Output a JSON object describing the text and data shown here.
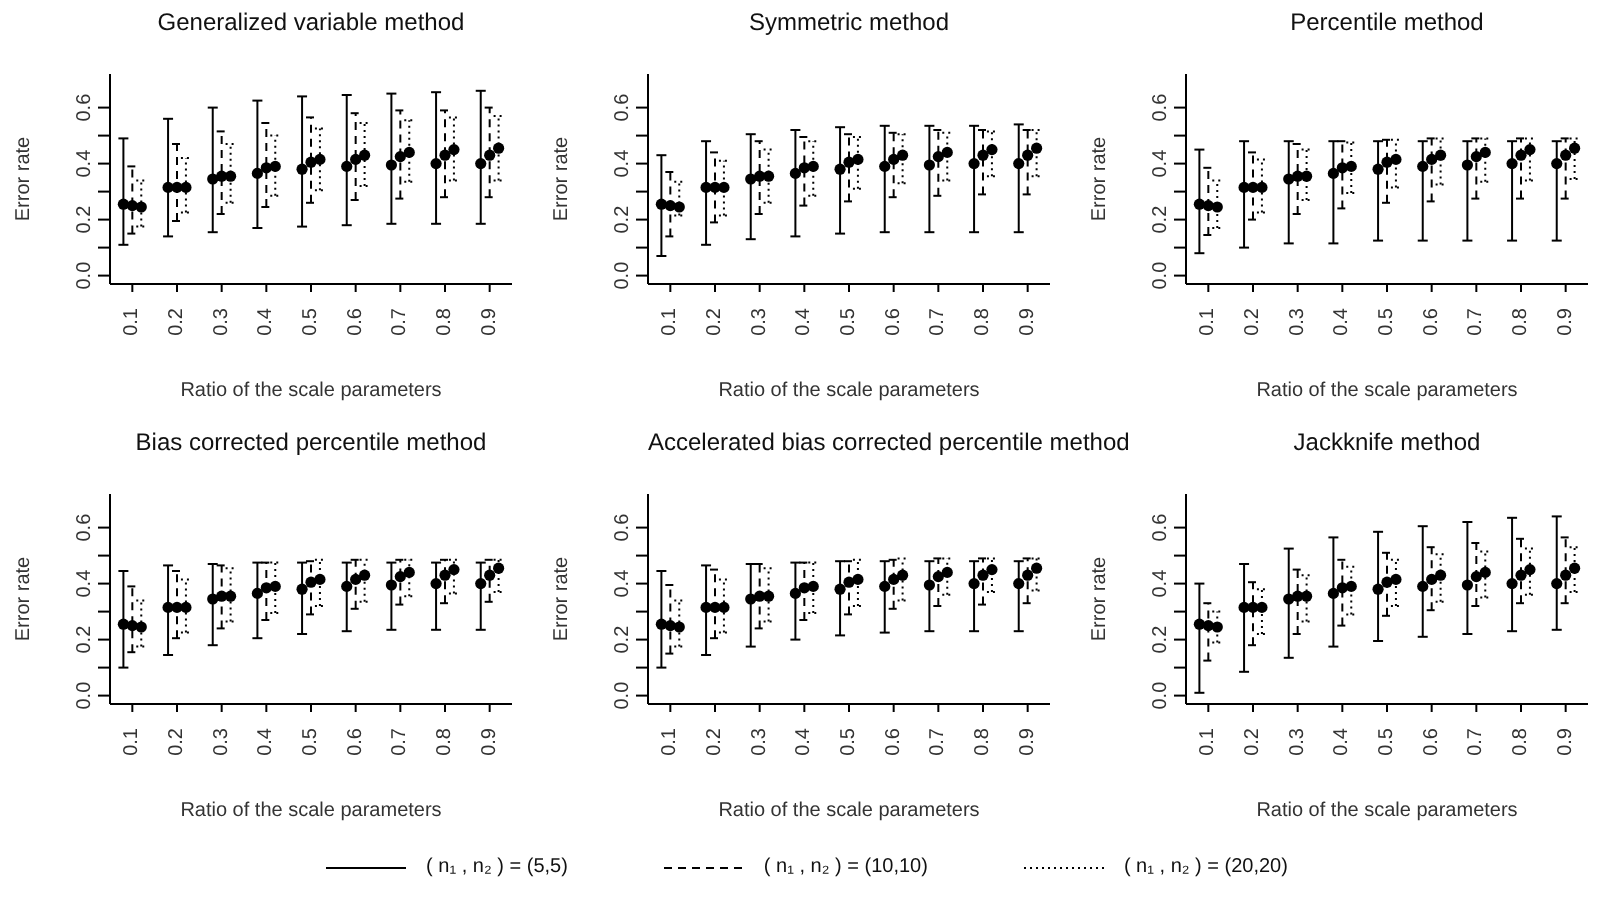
{
  "chart_data": [
    {
      "type": "scatter",
      "title": "Generalized variable method",
      "xlabel": "Ratio of the scale parameters",
      "ylabel": "Error rate",
      "xlim": [
        0.05,
        0.95
      ],
      "xticks": [
        0.1,
        0.2,
        0.3,
        0.4,
        0.5,
        0.6,
        0.7,
        0.8,
        0.9
      ],
      "ylim": [
        -0.03,
        0.72
      ],
      "yticks": [
        {
          "value": 0,
          "label": "0.0"
        },
        {
          "value": 0.1,
          "label": null
        },
        {
          "value": 0.2,
          "label": "0.2"
        },
        {
          "value": 0.3,
          "label": null
        },
        {
          "value": 0.4,
          "label": "0.4"
        },
        {
          "value": 0.5,
          "label": null
        },
        {
          "value": 0.6,
          "label": "0.6"
        }
      ],
      "grid": false,
      "marker": "circle",
      "legend": false,
      "series": [
        {
          "color": "#000000",
          "line_style": "solid",
          "x": [
            0.08,
            0.18,
            0.28,
            0.38,
            0.48,
            0.58,
            0.68,
            0.78,
            0.88
          ],
          "values": [
            0.255,
            0.315,
            0.345,
            0.365,
            0.38,
            0.39,
            0.395,
            0.4,
            0.4
          ],
          "errors": [
            [
              0.11,
              0.49
            ],
            [
              0.14,
              0.56
            ],
            [
              0.155,
              0.6
            ],
            [
              0.17,
              0.625
            ],
            [
              0.175,
              0.64
            ],
            [
              0.18,
              0.645
            ],
            [
              0.185,
              0.65
            ],
            [
              0.185,
              0.655
            ],
            [
              0.185,
              0.66
            ]
          ]
        },
        {
          "color": "#000000",
          "line_style": "dashed",
          "x": [
            0.1,
            0.2,
            0.3,
            0.4,
            0.5,
            0.6,
            0.7,
            0.8,
            0.9
          ],
          "values": [
            0.25,
            0.315,
            0.355,
            0.385,
            0.405,
            0.415,
            0.425,
            0.43,
            0.43
          ],
          "errors": [
            [
              0.15,
              0.39
            ],
            [
              0.195,
              0.47
            ],
            [
              0.22,
              0.515
            ],
            [
              0.245,
              0.545
            ],
            [
              0.26,
              0.565
            ],
            [
              0.27,
              0.58
            ],
            [
              0.275,
              0.59
            ],
            [
              0.28,
              0.59
            ],
            [
              0.28,
              0.6
            ]
          ]
        },
        {
          "color": "#000000",
          "line_style": "dotted",
          "x": [
            0.12,
            0.22,
            0.32,
            0.42,
            0.52,
            0.62,
            0.72,
            0.82,
            0.92
          ],
          "values": [
            0.245,
            0.315,
            0.355,
            0.39,
            0.415,
            0.43,
            0.44,
            0.45,
            0.455
          ],
          "errors": [
            [
              0.175,
              0.34
            ],
            [
              0.225,
              0.42
            ],
            [
              0.26,
              0.47
            ],
            [
              0.285,
              0.5
            ],
            [
              0.305,
              0.525
            ],
            [
              0.32,
              0.545
            ],
            [
              0.335,
              0.555
            ],
            [
              0.34,
              0.565
            ],
            [
              0.34,
              0.57
            ]
          ]
        }
      ]
    },
    {
      "type": "scatter",
      "title": "Symmetric method",
      "xlabel": "Ratio of the scale parameters",
      "ylabel": "Error rate",
      "xlim": [
        0.05,
        0.95
      ],
      "xticks": [
        0.1,
        0.2,
        0.3,
        0.4,
        0.5,
        0.6,
        0.7,
        0.8,
        0.9
      ],
      "ylim": [
        -0.03,
        0.72
      ],
      "yticks": [
        {
          "value": 0,
          "label": "0.0"
        },
        {
          "value": 0.1,
          "label": null
        },
        {
          "value": 0.2,
          "label": "0.2"
        },
        {
          "value": 0.3,
          "label": null
        },
        {
          "value": 0.4,
          "label": "0.4"
        },
        {
          "value": 0.5,
          "label": null
        },
        {
          "value": 0.6,
          "label": "0.6"
        }
      ],
      "grid": false,
      "marker": "circle",
      "legend": false,
      "series": [
        {
          "color": "#000000",
          "line_style": "solid",
          "x": [
            0.08,
            0.18,
            0.28,
            0.38,
            0.48,
            0.58,
            0.68,
            0.78,
            0.88
          ],
          "values": [
            0.255,
            0.315,
            0.345,
            0.365,
            0.38,
            0.39,
            0.395,
            0.4,
            0.4
          ],
          "errors": [
            [
              0.07,
              0.43
            ],
            [
              0.11,
              0.48
            ],
            [
              0.13,
              0.505
            ],
            [
              0.14,
              0.52
            ],
            [
              0.15,
              0.53
            ],
            [
              0.155,
              0.535
            ],
            [
              0.155,
              0.535
            ],
            [
              0.155,
              0.535
            ],
            [
              0.155,
              0.54
            ]
          ]
        },
        {
          "color": "#000000",
          "line_style": "dashed",
          "x": [
            0.1,
            0.2,
            0.3,
            0.4,
            0.5,
            0.6,
            0.7,
            0.8,
            0.9
          ],
          "values": [
            0.25,
            0.315,
            0.355,
            0.385,
            0.405,
            0.415,
            0.425,
            0.43,
            0.43
          ],
          "errors": [
            [
              0.14,
              0.37
            ],
            [
              0.19,
              0.44
            ],
            [
              0.22,
              0.48
            ],
            [
              0.25,
              0.495
            ],
            [
              0.265,
              0.505
            ],
            [
              0.28,
              0.51
            ],
            [
              0.285,
              0.52
            ],
            [
              0.29,
              0.52
            ],
            [
              0.29,
              0.52
            ]
          ]
        },
        {
          "color": "#000000",
          "line_style": "dotted",
          "x": [
            0.12,
            0.22,
            0.32,
            0.42,
            0.52,
            0.62,
            0.72,
            0.82,
            0.92
          ],
          "values": [
            0.245,
            0.315,
            0.355,
            0.39,
            0.415,
            0.43,
            0.44,
            0.45,
            0.455
          ],
          "errors": [
            [
              0.215,
              0.335
            ],
            [
              0.215,
              0.41
            ],
            [
              0.26,
              0.45
            ],
            [
              0.285,
              0.48
            ],
            [
              0.31,
              0.495
            ],
            [
              0.33,
              0.505
            ],
            [
              0.34,
              0.51
            ],
            [
              0.355,
              0.515
            ],
            [
              0.355,
              0.52
            ]
          ]
        }
      ]
    },
    {
      "type": "scatter",
      "title": "Percentile method",
      "xlabel": "Ratio of the scale parameters",
      "ylabel": "Error rate",
      "xlim": [
        0.05,
        0.95
      ],
      "xticks": [
        0.1,
        0.2,
        0.3,
        0.4,
        0.5,
        0.6,
        0.7,
        0.8,
        0.9
      ],
      "ylim": [
        -0.03,
        0.72
      ],
      "yticks": [
        {
          "value": 0,
          "label": "0.0"
        },
        {
          "value": 0.1,
          "label": null
        },
        {
          "value": 0.2,
          "label": "0.2"
        },
        {
          "value": 0.3,
          "label": null
        },
        {
          "value": 0.4,
          "label": "0.4"
        },
        {
          "value": 0.5,
          "label": null
        },
        {
          "value": 0.6,
          "label": "0.6"
        }
      ],
      "grid": false,
      "marker": "circle",
      "legend": false,
      "series": [
        {
          "color": "#000000",
          "line_style": "solid",
          "x": [
            0.08,
            0.18,
            0.28,
            0.38,
            0.48,
            0.58,
            0.68,
            0.78,
            0.88
          ],
          "values": [
            0.255,
            0.315,
            0.345,
            0.365,
            0.38,
            0.39,
            0.395,
            0.4,
            0.4
          ],
          "errors": [
            [
              0.08,
              0.45
            ],
            [
              0.1,
              0.48
            ],
            [
              0.115,
              0.48
            ],
            [
              0.115,
              0.48
            ],
            [
              0.125,
              0.48
            ],
            [
              0.125,
              0.48
            ],
            [
              0.125,
              0.48
            ],
            [
              0.125,
              0.48
            ],
            [
              0.125,
              0.48
            ]
          ]
        },
        {
          "color": "#000000",
          "line_style": "dashed",
          "x": [
            0.1,
            0.2,
            0.3,
            0.4,
            0.5,
            0.6,
            0.7,
            0.8,
            0.9
          ],
          "values": [
            0.25,
            0.315,
            0.355,
            0.385,
            0.405,
            0.415,
            0.425,
            0.43,
            0.43
          ],
          "errors": [
            [
              0.145,
              0.385
            ],
            [
              0.2,
              0.44
            ],
            [
              0.22,
              0.47
            ],
            [
              0.24,
              0.48
            ],
            [
              0.26,
              0.485
            ],
            [
              0.265,
              0.49
            ],
            [
              0.275,
              0.49
            ],
            [
              0.275,
              0.49
            ],
            [
              0.275,
              0.49
            ]
          ]
        },
        {
          "color": "#000000",
          "line_style": "dotted",
          "x": [
            0.12,
            0.22,
            0.32,
            0.42,
            0.52,
            0.62,
            0.72,
            0.82,
            0.92
          ],
          "values": [
            0.245,
            0.315,
            0.355,
            0.39,
            0.415,
            0.43,
            0.44,
            0.45,
            0.455
          ],
          "errors": [
            [
              0.17,
              0.34
            ],
            [
              0.225,
              0.415
            ],
            [
              0.27,
              0.45
            ],
            [
              0.295,
              0.475
            ],
            [
              0.315,
              0.485
            ],
            [
              0.325,
              0.49
            ],
            [
              0.335,
              0.49
            ],
            [
              0.34,
              0.49
            ],
            [
              0.345,
              0.49
            ]
          ]
        }
      ]
    },
    {
      "type": "scatter",
      "title": "Bias corrected percentile method",
      "xlabel": "Ratio of the scale parameters",
      "ylabel": "Error rate",
      "xlim": [
        0.05,
        0.95
      ],
      "xticks": [
        0.1,
        0.2,
        0.3,
        0.4,
        0.5,
        0.6,
        0.7,
        0.8,
        0.9
      ],
      "ylim": [
        -0.03,
        0.72
      ],
      "yticks": [
        {
          "value": 0,
          "label": "0.0"
        },
        {
          "value": 0.1,
          "label": null
        },
        {
          "value": 0.2,
          "label": "0.2"
        },
        {
          "value": 0.3,
          "label": null
        },
        {
          "value": 0.4,
          "label": "0.4"
        },
        {
          "value": 0.5,
          "label": null
        },
        {
          "value": 0.6,
          "label": "0.6"
        }
      ],
      "grid": false,
      "marker": "circle",
      "legend": false,
      "series": [
        {
          "color": "#000000",
          "line_style": "solid",
          "x": [
            0.08,
            0.18,
            0.28,
            0.38,
            0.48,
            0.58,
            0.68,
            0.78,
            0.88
          ],
          "values": [
            0.255,
            0.315,
            0.345,
            0.365,
            0.38,
            0.39,
            0.395,
            0.4,
            0.4
          ],
          "errors": [
            [
              0.1,
              0.445
            ],
            [
              0.145,
              0.465
            ],
            [
              0.18,
              0.47
            ],
            [
              0.205,
              0.475
            ],
            [
              0.22,
              0.475
            ],
            [
              0.23,
              0.475
            ],
            [
              0.235,
              0.475
            ],
            [
              0.235,
              0.475
            ],
            [
              0.235,
              0.475
            ]
          ]
        },
        {
          "color": "#000000",
          "line_style": "dashed",
          "x": [
            0.1,
            0.2,
            0.3,
            0.4,
            0.5,
            0.6,
            0.7,
            0.8,
            0.9
          ],
          "values": [
            0.25,
            0.315,
            0.355,
            0.385,
            0.405,
            0.415,
            0.425,
            0.43,
            0.43
          ],
          "errors": [
            [
              0.155,
              0.39
            ],
            [
              0.205,
              0.445
            ],
            [
              0.24,
              0.465
            ],
            [
              0.27,
              0.475
            ],
            [
              0.29,
              0.48
            ],
            [
              0.31,
              0.485
            ],
            [
              0.325,
              0.485
            ],
            [
              0.33,
              0.485
            ],
            [
              0.335,
              0.485
            ]
          ]
        },
        {
          "color": "#000000",
          "line_style": "dotted",
          "x": [
            0.12,
            0.22,
            0.32,
            0.42,
            0.52,
            0.62,
            0.72,
            0.82,
            0.92
          ],
          "values": [
            0.245,
            0.315,
            0.355,
            0.39,
            0.415,
            0.43,
            0.44,
            0.45,
            0.455
          ],
          "errors": [
            [
              0.175,
              0.34
            ],
            [
              0.225,
              0.415
            ],
            [
              0.265,
              0.455
            ],
            [
              0.295,
              0.475
            ],
            [
              0.32,
              0.485
            ],
            [
              0.335,
              0.485
            ],
            [
              0.355,
              0.485
            ],
            [
              0.365,
              0.485
            ],
            [
              0.37,
              0.485
            ]
          ]
        }
      ]
    },
    {
      "type": "scatter",
      "title": "Accelerated bias corrected percentile method",
      "xlabel": "Ratio of the scale parameters",
      "ylabel": "Error rate",
      "xlim": [
        0.05,
        0.95
      ],
      "xticks": [
        0.1,
        0.2,
        0.3,
        0.4,
        0.5,
        0.6,
        0.7,
        0.8,
        0.9
      ],
      "ylim": [
        -0.03,
        0.72
      ],
      "yticks": [
        {
          "value": 0,
          "label": "0.0"
        },
        {
          "value": 0.1,
          "label": null
        },
        {
          "value": 0.2,
          "label": "0.2"
        },
        {
          "value": 0.3,
          "label": null
        },
        {
          "value": 0.4,
          "label": "0.4"
        },
        {
          "value": 0.5,
          "label": null
        },
        {
          "value": 0.6,
          "label": "0.6"
        }
      ],
      "grid": false,
      "marker": "circle",
      "legend": false,
      "series": [
        {
          "color": "#000000",
          "line_style": "solid",
          "x": [
            0.08,
            0.18,
            0.28,
            0.38,
            0.48,
            0.58,
            0.68,
            0.78,
            0.88
          ],
          "values": [
            0.255,
            0.315,
            0.345,
            0.365,
            0.38,
            0.39,
            0.395,
            0.4,
            0.4
          ],
          "errors": [
            [
              0.1,
              0.445
            ],
            [
              0.145,
              0.465
            ],
            [
              0.175,
              0.47
            ],
            [
              0.2,
              0.475
            ],
            [
              0.215,
              0.48
            ],
            [
              0.225,
              0.48
            ],
            [
              0.23,
              0.48
            ],
            [
              0.23,
              0.48
            ],
            [
              0.23,
              0.48
            ]
          ]
        },
        {
          "color": "#000000",
          "line_style": "dashed",
          "x": [
            0.1,
            0.2,
            0.3,
            0.4,
            0.5,
            0.6,
            0.7,
            0.8,
            0.9
          ],
          "values": [
            0.25,
            0.315,
            0.355,
            0.385,
            0.405,
            0.415,
            0.425,
            0.43,
            0.43
          ],
          "errors": [
            [
              0.15,
              0.395
            ],
            [
              0.205,
              0.45
            ],
            [
              0.24,
              0.47
            ],
            [
              0.27,
              0.475
            ],
            [
              0.29,
              0.48
            ],
            [
              0.31,
              0.485
            ],
            [
              0.32,
              0.49
            ],
            [
              0.325,
              0.49
            ],
            [
              0.33,
              0.49
            ]
          ]
        },
        {
          "color": "#000000",
          "line_style": "dotted",
          "x": [
            0.12,
            0.22,
            0.32,
            0.42,
            0.52,
            0.62,
            0.72,
            0.82,
            0.92
          ],
          "values": [
            0.245,
            0.315,
            0.355,
            0.39,
            0.415,
            0.43,
            0.44,
            0.45,
            0.455
          ],
          "errors": [
            [
              0.175,
              0.34
            ],
            [
              0.225,
              0.415
            ],
            [
              0.265,
              0.455
            ],
            [
              0.295,
              0.475
            ],
            [
              0.32,
              0.485
            ],
            [
              0.34,
              0.49
            ],
            [
              0.36,
              0.49
            ],
            [
              0.37,
              0.49
            ],
            [
              0.375,
              0.49
            ]
          ]
        }
      ]
    },
    {
      "type": "scatter",
      "title": "Jackknife method",
      "xlabel": "Ratio of the scale parameters",
      "ylabel": "Error rate",
      "xlim": [
        0.05,
        0.95
      ],
      "xticks": [
        0.1,
        0.2,
        0.3,
        0.4,
        0.5,
        0.6,
        0.7,
        0.8,
        0.9
      ],
      "ylim": [
        -0.03,
        0.72
      ],
      "yticks": [
        {
          "value": 0,
          "label": "0.0"
        },
        {
          "value": 0.1,
          "label": null
        },
        {
          "value": 0.2,
          "label": "0.2"
        },
        {
          "value": 0.3,
          "label": null
        },
        {
          "value": 0.4,
          "label": "0.4"
        },
        {
          "value": 0.5,
          "label": null
        },
        {
          "value": 0.6,
          "label": "0.6"
        }
      ],
      "grid": false,
      "marker": "circle",
      "legend": "bottom",
      "series": [
        {
          "name": "( n₁ , n₂ ) = (5,5)",
          "color": "#000000",
          "line_style": "solid",
          "x": [
            0.08,
            0.18,
            0.28,
            0.38,
            0.48,
            0.58,
            0.68,
            0.78,
            0.88
          ],
          "values": [
            0.255,
            0.315,
            0.345,
            0.365,
            0.38,
            0.39,
            0.395,
            0.4,
            0.4
          ],
          "errors": [
            [
              0.01,
              0.4
            ],
            [
              0.085,
              0.47
            ],
            [
              0.135,
              0.525
            ],
            [
              0.175,
              0.565
            ],
            [
              0.195,
              0.585
            ],
            [
              0.21,
              0.605
            ],
            [
              0.22,
              0.62
            ],
            [
              0.23,
              0.635
            ],
            [
              0.235,
              0.64
            ]
          ]
        },
        {
          "name": "( n₁ , n₂ ) = (10,10)",
          "color": "#000000",
          "line_style": "dashed",
          "x": [
            0.1,
            0.2,
            0.3,
            0.4,
            0.5,
            0.6,
            0.7,
            0.8,
            0.9
          ],
          "values": [
            0.25,
            0.315,
            0.355,
            0.385,
            0.405,
            0.415,
            0.425,
            0.43,
            0.43
          ],
          "errors": [
            [
              0.125,
              0.33
            ],
            [
              0.18,
              0.405
            ],
            [
              0.22,
              0.45
            ],
            [
              0.25,
              0.485
            ],
            [
              0.285,
              0.51
            ],
            [
              0.305,
              0.53
            ],
            [
              0.32,
              0.545
            ],
            [
              0.33,
              0.56
            ],
            [
              0.33,
              0.565
            ]
          ]
        },
        {
          "name": "( n₁ , n₂ ) = (20,20)",
          "color": "#000000",
          "line_style": "dotted",
          "x": [
            0.12,
            0.22,
            0.32,
            0.42,
            0.52,
            0.62,
            0.72,
            0.82,
            0.92
          ],
          "values": [
            0.245,
            0.315,
            0.355,
            0.39,
            0.415,
            0.43,
            0.44,
            0.45,
            0.455
          ],
          "errors": [
            [
              0.19,
              0.3
            ],
            [
              0.22,
              0.38
            ],
            [
              0.265,
              0.43
            ],
            [
              0.29,
              0.46
            ],
            [
              0.32,
              0.485
            ],
            [
              0.335,
              0.505
            ],
            [
              0.35,
              0.515
            ],
            [
              0.36,
              0.525
            ],
            [
              0.37,
              0.53
            ]
          ]
        }
      ]
    }
  ]
}
